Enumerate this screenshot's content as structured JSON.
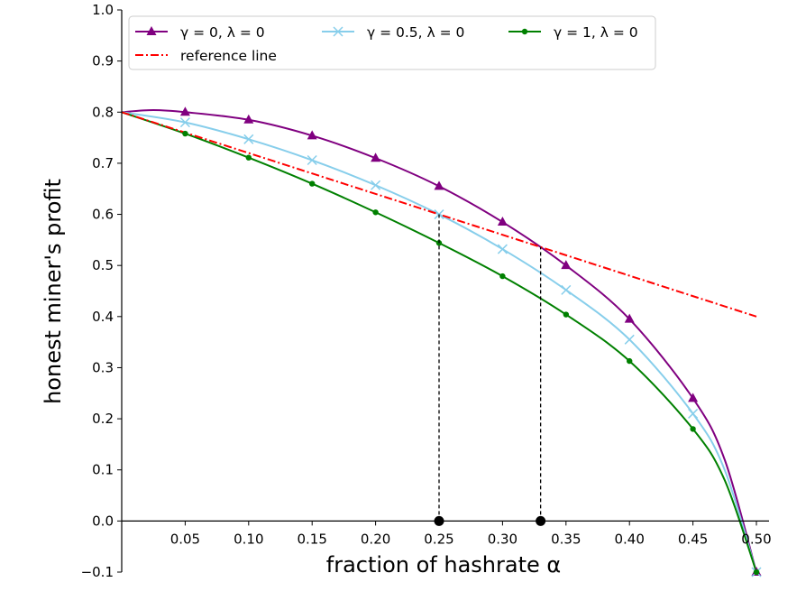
{
  "chart_data": {
    "type": "line",
    "title": "",
    "xlabel": "fraction of hashrate α",
    "ylabel": "honest miner's profit",
    "xlim": [
      0.0,
      0.5
    ],
    "ylim": [
      -0.1,
      1.0
    ],
    "x_ticks": [
      0.05,
      0.1,
      0.15,
      0.2,
      0.25,
      0.3,
      0.35,
      0.4,
      0.45,
      0.5
    ],
    "x_tick_labels": [
      "0.05",
      "0.10",
      "0.15",
      "0.20",
      "0.25",
      "0.30",
      "0.35",
      "0.40",
      "0.45",
      "0.50"
    ],
    "y_ticks": [
      -0.1,
      0.0,
      0.1,
      0.2,
      0.3,
      0.4,
      0.5,
      0.6,
      0.7,
      0.8,
      0.9,
      1.0
    ],
    "y_tick_labels": [
      "−0.1",
      "0.0",
      "0.1",
      "0.2",
      "0.3",
      "0.4",
      "0.5",
      "0.6",
      "0.7",
      "0.8",
      "0.9",
      "1.0"
    ],
    "grid": false,
    "legend": {
      "position": "top-left",
      "columns": 3
    },
    "series": [
      {
        "name": "γ = 0, λ = 0",
        "color": "#800080",
        "marker": "triangle",
        "linestyle": "solid",
        "x": [
          0.0,
          0.025,
          0.05,
          0.1,
          0.15,
          0.2,
          0.25,
          0.3,
          0.35,
          0.4,
          0.45,
          0.475,
          0.5
        ],
        "y": [
          0.8,
          0.804,
          0.8,
          0.785,
          0.754,
          0.71,
          0.655,
          0.585,
          0.5,
          0.395,
          0.24,
          0.12,
          -0.1
        ],
        "marker_x": [
          0.05,
          0.1,
          0.15,
          0.2,
          0.25,
          0.3,
          0.35,
          0.4,
          0.45,
          0.5
        ]
      },
      {
        "name": "γ = 0.5, λ = 0",
        "color": "#87ceeb",
        "marker": "x",
        "linestyle": "solid",
        "x": [
          0.0,
          0.05,
          0.1,
          0.15,
          0.2,
          0.25,
          0.3,
          0.35,
          0.4,
          0.45,
          0.475,
          0.5
        ],
        "y": [
          0.8,
          0.78,
          0.747,
          0.706,
          0.657,
          0.6,
          0.532,
          0.452,
          0.355,
          0.21,
          0.1,
          -0.1
        ],
        "marker_x": [
          0.05,
          0.1,
          0.15,
          0.2,
          0.25,
          0.3,
          0.35,
          0.4,
          0.45,
          0.5
        ]
      },
      {
        "name": "γ = 1, λ = 0",
        "color": "#008000",
        "marker": "dot",
        "linestyle": "solid",
        "x": [
          0.0,
          0.05,
          0.1,
          0.15,
          0.2,
          0.25,
          0.3,
          0.35,
          0.4,
          0.45,
          0.475,
          0.5
        ],
        "y": [
          0.8,
          0.758,
          0.711,
          0.66,
          0.604,
          0.544,
          0.479,
          0.404,
          0.313,
          0.18,
          0.08,
          -0.1
        ],
        "marker_x": [
          0.05,
          0.1,
          0.15,
          0.2,
          0.25,
          0.3,
          0.35,
          0.4,
          0.45,
          0.5
        ]
      },
      {
        "name": "reference line",
        "color": "#ff0000",
        "marker": "none",
        "linestyle": "dashdot",
        "x": [
          0.0,
          0.5
        ],
        "y": [
          0.8,
          0.4
        ],
        "marker_x": []
      }
    ],
    "vlines": [
      {
        "x": 0.25,
        "y": 0.6,
        "color": "#000000",
        "linestyle": "dashed"
      },
      {
        "x": 0.33,
        "y": 0.536,
        "color": "#000000",
        "linestyle": "dashed"
      }
    ],
    "points": [
      {
        "x": 0.25,
        "y": 0.0,
        "color": "#000000"
      },
      {
        "x": 0.33,
        "y": 0.0,
        "color": "#000000"
      }
    ]
  }
}
